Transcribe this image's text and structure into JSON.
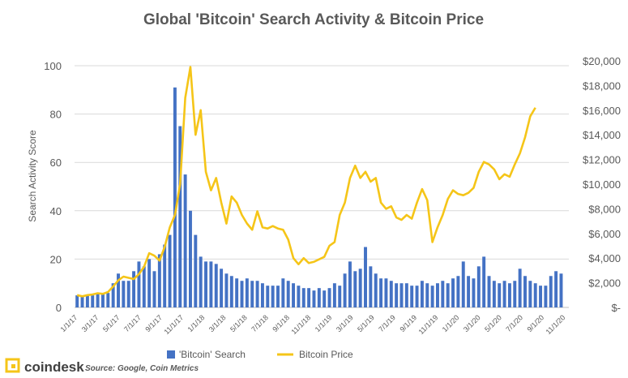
{
  "chart_data": {
    "type": "bar+line",
    "title": "Global 'Bitcoin' Search Activity & Bitcoin Price",
    "ylabel_left": "Search Activity Score",
    "ylabel_right": "",
    "ylim_left": [
      0,
      110
    ],
    "yticks_left": [
      "0",
      "20",
      "40",
      "60",
      "80",
      "100"
    ],
    "ylim_right": [
      0,
      20000
    ],
    "yticks_right": [
      "$-",
      "$2,000",
      "$4,000",
      "$6,000",
      "$8,000",
      "$10,000",
      "$12,000",
      "$14,000",
      "$16,000",
      "$18,000",
      "$20,000"
    ],
    "x_tick_labels": [
      "1/1/17",
      "3/1/17",
      "5/1/17",
      "7/1/17",
      "9/1/17",
      "11/1/17",
      "1/1/18",
      "3/1/18",
      "5/1/18",
      "7/1/18",
      "9/1/18",
      "11/1/18",
      "1/1/19",
      "3/1/19",
      "5/1/19",
      "7/1/19",
      "9/1/19",
      "11/1/19",
      "1/1/20",
      "3/1/20",
      "5/1/20",
      "7/1/20",
      "9/1/20",
      "11/1/20"
    ],
    "legend": "bottom",
    "grid": "horizontal",
    "series": [
      {
        "name": "'Bitcoin' Search",
        "type": "bar",
        "color": "#4472C4",
        "axis": "left",
        "points": [
          [
            0,
            5
          ],
          [
            1,
            5
          ],
          [
            2,
            5
          ],
          [
            3,
            5
          ],
          [
            4,
            6
          ],
          [
            5,
            6
          ],
          [
            6,
            6
          ],
          [
            7,
            10
          ],
          [
            8,
            14
          ],
          [
            9,
            11
          ],
          [
            10,
            11
          ],
          [
            11,
            15
          ],
          [
            12,
            19
          ],
          [
            13,
            17
          ],
          [
            14,
            20
          ],
          [
            15,
            15
          ],
          [
            16,
            22
          ],
          [
            17,
            26
          ],
          [
            18,
            30
          ],
          [
            19,
            91
          ],
          [
            20,
            75
          ],
          [
            21,
            55
          ],
          [
            22,
            40
          ],
          [
            23,
            30
          ],
          [
            24,
            21
          ],
          [
            25,
            19
          ],
          [
            26,
            19
          ],
          [
            27,
            18
          ],
          [
            28,
            16
          ],
          [
            29,
            14
          ],
          [
            30,
            13
          ],
          [
            31,
            12
          ],
          [
            32,
            11
          ],
          [
            33,
            12
          ],
          [
            34,
            11
          ],
          [
            35,
            11
          ],
          [
            36,
            10
          ],
          [
            37,
            9
          ],
          [
            38,
            9
          ],
          [
            39,
            9
          ],
          [
            40,
            12
          ],
          [
            41,
            11
          ],
          [
            42,
            10
          ],
          [
            43,
            9
          ],
          [
            44,
            8
          ],
          [
            45,
            8
          ],
          [
            46,
            7
          ],
          [
            47,
            8
          ],
          [
            48,
            7
          ],
          [
            49,
            8
          ],
          [
            50,
            10
          ],
          [
            51,
            9
          ],
          [
            52,
            14
          ],
          [
            53,
            19
          ],
          [
            54,
            15
          ],
          [
            55,
            16
          ],
          [
            56,
            25
          ],
          [
            57,
            17
          ],
          [
            58,
            14
          ],
          [
            59,
            12
          ],
          [
            60,
            12
          ],
          [
            61,
            11
          ],
          [
            62,
            10
          ],
          [
            63,
            10
          ],
          [
            64,
            10
          ],
          [
            65,
            9
          ],
          [
            66,
            9
          ],
          [
            67,
            11
          ],
          [
            68,
            10
          ],
          [
            69,
            9
          ],
          [
            70,
            10
          ],
          [
            71,
            11
          ],
          [
            72,
            10
          ],
          [
            73,
            12
          ],
          [
            74,
            13
          ],
          [
            75,
            19
          ],
          [
            76,
            13
          ],
          [
            77,
            12
          ],
          [
            78,
            17
          ],
          [
            79,
            21
          ],
          [
            80,
            13
          ],
          [
            81,
            11
          ],
          [
            82,
            10
          ],
          [
            83,
            11
          ],
          [
            84,
            10
          ],
          [
            85,
            11
          ],
          [
            86,
            16
          ],
          [
            87,
            13
          ],
          [
            88,
            11
          ],
          [
            89,
            10
          ],
          [
            90,
            9
          ],
          [
            91,
            9
          ],
          [
            92,
            13
          ],
          [
            93,
            15
          ],
          [
            94,
            14
          ]
        ]
      },
      {
        "name": "Bitcoin Price",
        "type": "line",
        "color": "#F5C518",
        "axis": "right",
        "points": [
          [
            0,
            1000
          ],
          [
            1,
            900
          ],
          [
            2,
            1000
          ],
          [
            3,
            1050
          ],
          [
            4,
            1150
          ],
          [
            5,
            1100
          ],
          [
            6,
            1250
          ],
          [
            7,
            1700
          ],
          [
            8,
            2200
          ],
          [
            9,
            2500
          ],
          [
            10,
            2400
          ],
          [
            11,
            2300
          ],
          [
            12,
            2700
          ],
          [
            13,
            3300
          ],
          [
            14,
            4400
          ],
          [
            15,
            4200
          ],
          [
            16,
            3800
          ],
          [
            17,
            4900
          ],
          [
            18,
            6500
          ],
          [
            19,
            7500
          ],
          [
            20,
            10000
          ],
          [
            21,
            17000
          ],
          [
            22,
            19500
          ],
          [
            23,
            14000
          ],
          [
            24,
            16000
          ],
          [
            25,
            11000
          ],
          [
            26,
            9500
          ],
          [
            27,
            10500
          ],
          [
            28,
            8500
          ],
          [
            29,
            6800
          ],
          [
            30,
            9000
          ],
          [
            31,
            8500
          ],
          [
            32,
            7500
          ],
          [
            33,
            6800
          ],
          [
            34,
            6300
          ],
          [
            35,
            7800
          ],
          [
            36,
            6500
          ],
          [
            37,
            6400
          ],
          [
            38,
            6600
          ],
          [
            39,
            6400
          ],
          [
            40,
            6300
          ],
          [
            41,
            5500
          ],
          [
            42,
            4000
          ],
          [
            43,
            3500
          ],
          [
            44,
            4000
          ],
          [
            45,
            3600
          ],
          [
            46,
            3700
          ],
          [
            47,
            3900
          ],
          [
            48,
            4100
          ],
          [
            49,
            5000
          ],
          [
            50,
            5300
          ],
          [
            51,
            7500
          ],
          [
            52,
            8500
          ],
          [
            53,
            10500
          ],
          [
            54,
            11500
          ],
          [
            55,
            10500
          ],
          [
            56,
            11000
          ],
          [
            57,
            10200
          ],
          [
            58,
            10500
          ],
          [
            59,
            8500
          ],
          [
            60,
            8000
          ],
          [
            61,
            8200
          ],
          [
            62,
            7300
          ],
          [
            63,
            7100
          ],
          [
            64,
            7500
          ],
          [
            65,
            7200
          ],
          [
            66,
            8500
          ],
          [
            67,
            9600
          ],
          [
            68,
            8700
          ],
          [
            69,
            5300
          ],
          [
            70,
            6500
          ],
          [
            71,
            7500
          ],
          [
            72,
            8800
          ],
          [
            73,
            9500
          ],
          [
            74,
            9200
          ],
          [
            75,
            9100
          ],
          [
            76,
            9300
          ],
          [
            77,
            9700
          ],
          [
            78,
            11000
          ],
          [
            79,
            11800
          ],
          [
            80,
            11600
          ],
          [
            81,
            11200
          ],
          [
            82,
            10400
          ],
          [
            83,
            10800
          ],
          [
            84,
            10600
          ],
          [
            85,
            11600
          ],
          [
            86,
            12500
          ],
          [
            87,
            13800
          ],
          [
            88,
            15500
          ],
          [
            89,
            16200
          ]
        ]
      }
    ]
  },
  "footer": {
    "logo_text": "coindesk",
    "source": "Source: Google, Coin Metrics"
  },
  "colors": {
    "bars": "#4472C4",
    "line": "#F5C518",
    "logo": "#F5C518",
    "title": "#595959",
    "axis_text": "#595959",
    "gridline": "#D9D9D9"
  }
}
